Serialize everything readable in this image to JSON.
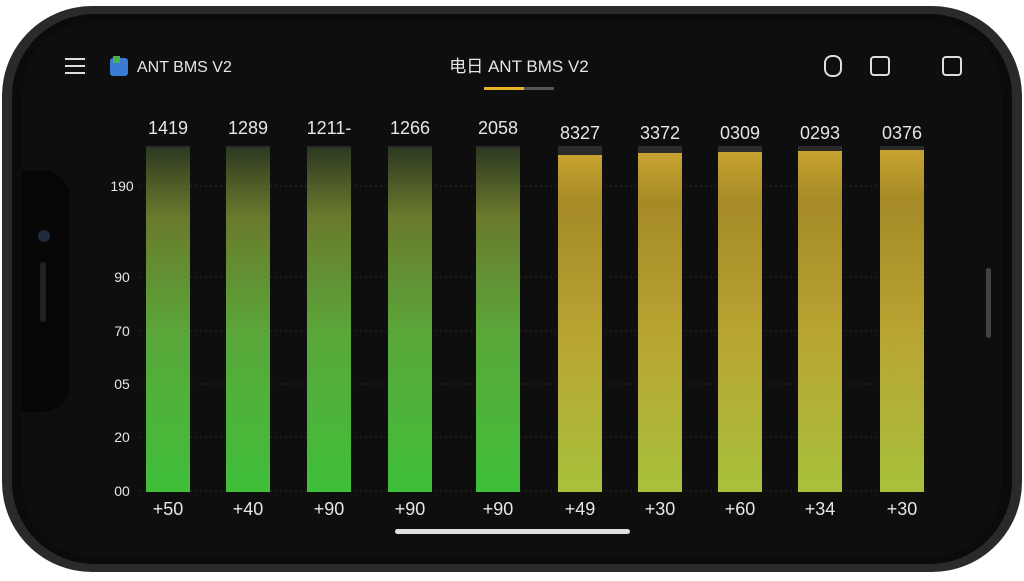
{
  "header": {
    "app_name": "ANT BMS V2",
    "screen_title": "电日 ANT BMS V2"
  },
  "chart": {
    "y_labels": [
      "190",
      "90",
      "70",
      "05",
      "20",
      "00"
    ],
    "top_labels": [
      "1419",
      "1289",
      "1211-",
      "1266",
      "2058",
      "8327",
      "3372",
      "0309",
      "0293",
      "0376"
    ],
    "bottom_labels": [
      "+50",
      "+40",
      "+90",
      "+90",
      "+90",
      "+49",
      "+30",
      "+60",
      "+34",
      "+30"
    ]
  }
}
